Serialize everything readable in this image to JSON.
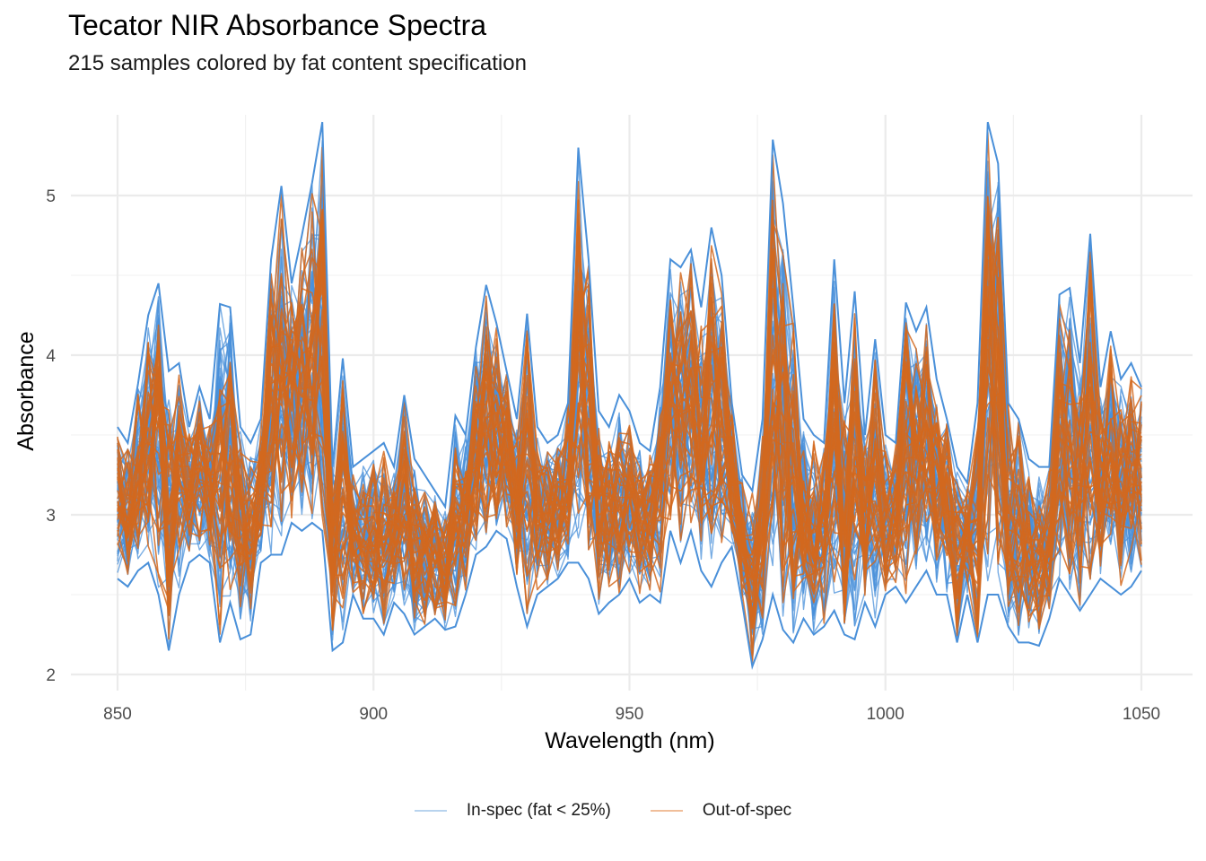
{
  "chart_data": {
    "type": "line",
    "title": "Tecator NIR Absorbance Spectra",
    "subtitle": "215 samples colored by fat content specification",
    "xlabel": "Wavelength (nm)",
    "ylabel": "Absorbance",
    "xlim": [
      850,
      1050
    ],
    "ylim": [
      2,
      5.5
    ],
    "x_ticks": [
      850,
      900,
      950,
      1000,
      1050
    ],
    "x_tick_labels": [
      "850",
      "900",
      "950",
      "1000",
      "1050"
    ],
    "y_ticks": [
      2,
      3,
      4,
      5
    ],
    "y_tick_labels": [
      "2",
      "3",
      "4",
      "5"
    ],
    "grid": true,
    "legend_position": "bottom",
    "n_samples": 215,
    "series": [
      {
        "name": "In-spec (fat < 25%)",
        "color": "#4A90D9",
        "legend_color": "#B8D3EE"
      },
      {
        "name": "Out-of-spec",
        "color": "#D2691E",
        "legend_color": "#F0BE9A"
      }
    ],
    "envelope": {
      "wavelength": [
        850,
        852,
        854,
        856,
        858,
        860,
        862,
        864,
        866,
        868,
        870,
        872,
        874,
        876,
        878,
        880,
        882,
        884,
        886,
        888,
        890,
        892,
        894,
        896,
        898,
        900,
        902,
        904,
        906,
        908,
        910,
        912,
        914,
        916,
        918,
        920,
        922,
        924,
        926,
        928,
        930,
        932,
        934,
        936,
        938,
        940,
        942,
        944,
        946,
        948,
        950,
        952,
        954,
        956,
        958,
        960,
        962,
        964,
        966,
        968,
        970,
        972,
        974,
        976,
        978,
        980,
        982,
        984,
        986,
        988,
        990,
        992,
        994,
        996,
        998,
        1000,
        1002,
        1004,
        1006,
        1008,
        1010,
        1012,
        1014,
        1016,
        1018,
        1020,
        1022,
        1024,
        1026,
        1028,
        1030,
        1032,
        1034,
        1036,
        1038,
        1040,
        1042,
        1044,
        1046,
        1048,
        1050
      ],
      "upper": [
        3.55,
        3.45,
        3.82,
        4.25,
        4.45,
        3.9,
        3.95,
        3.55,
        3.8,
        3.6,
        4.32,
        4.3,
        3.55,
        3.45,
        3.6,
        4.6,
        5.06,
        4.45,
        4.75,
        5.08,
        5.46,
        3.3,
        3.98,
        3.3,
        3.35,
        3.4,
        3.45,
        3.3,
        3.75,
        3.35,
        3.25,
        3.15,
        3.05,
        3.62,
        3.5,
        4.05,
        4.44,
        4.2,
        3.9,
        3.6,
        4.26,
        3.55,
        3.45,
        3.5,
        3.7,
        5.3,
        4.6,
        3.65,
        3.55,
        3.75,
        3.65,
        3.45,
        3.4,
        3.8,
        4.6,
        4.55,
        4.66,
        4.3,
        4.8,
        4.5,
        3.7,
        3.25,
        3.15,
        3.6,
        5.35,
        4.95,
        4.3,
        3.6,
        3.5,
        3.45,
        4.6,
        3.7,
        4.4,
        3.5,
        4.1,
        3.5,
        3.45,
        4.33,
        4.15,
        4.3,
        3.85,
        3.6,
        3.3,
        3.2,
        3.7,
        5.46,
        5.2,
        3.7,
        3.6,
        3.35,
        3.3,
        3.3,
        4.38,
        4.42,
        3.95,
        4.76,
        3.8,
        4.15,
        3.85,
        3.95,
        3.8
      ],
      "lower": [
        2.6,
        2.55,
        2.65,
        2.7,
        2.5,
        2.15,
        2.5,
        2.7,
        2.75,
        2.7,
        2.2,
        2.45,
        2.22,
        2.25,
        2.7,
        2.75,
        2.75,
        2.95,
        2.9,
        2.95,
        2.9,
        2.15,
        2.2,
        2.5,
        2.35,
        2.35,
        2.25,
        2.45,
        2.38,
        2.25,
        2.3,
        2.35,
        2.28,
        2.3,
        2.5,
        2.75,
        2.8,
        2.9,
        2.85,
        2.55,
        2.3,
        2.5,
        2.55,
        2.6,
        2.7,
        2.7,
        2.6,
        2.38,
        2.45,
        2.5,
        2.6,
        2.45,
        2.5,
        2.45,
        2.9,
        2.7,
        2.9,
        2.65,
        2.55,
        2.7,
        2.8,
        2.45,
        2.05,
        2.22,
        2.5,
        2.28,
        2.2,
        2.35,
        2.25,
        2.3,
        2.4,
        2.25,
        2.22,
        2.45,
        2.3,
        2.5,
        2.55,
        2.45,
        2.55,
        2.65,
        2.5,
        2.5,
        2.2,
        2.5,
        2.2,
        2.5,
        2.5,
        2.3,
        2.2,
        2.2,
        2.18,
        2.35,
        2.6,
        2.5,
        2.4,
        2.5,
        2.6,
        2.55,
        2.5,
        2.55,
        2.65
      ]
    }
  },
  "legend": {
    "items": [
      {
        "label": "In-spec (fat < 25%)",
        "color": "#B8D3EE"
      },
      {
        "label": "Out-of-spec",
        "color": "#F0BE9A"
      }
    ]
  }
}
